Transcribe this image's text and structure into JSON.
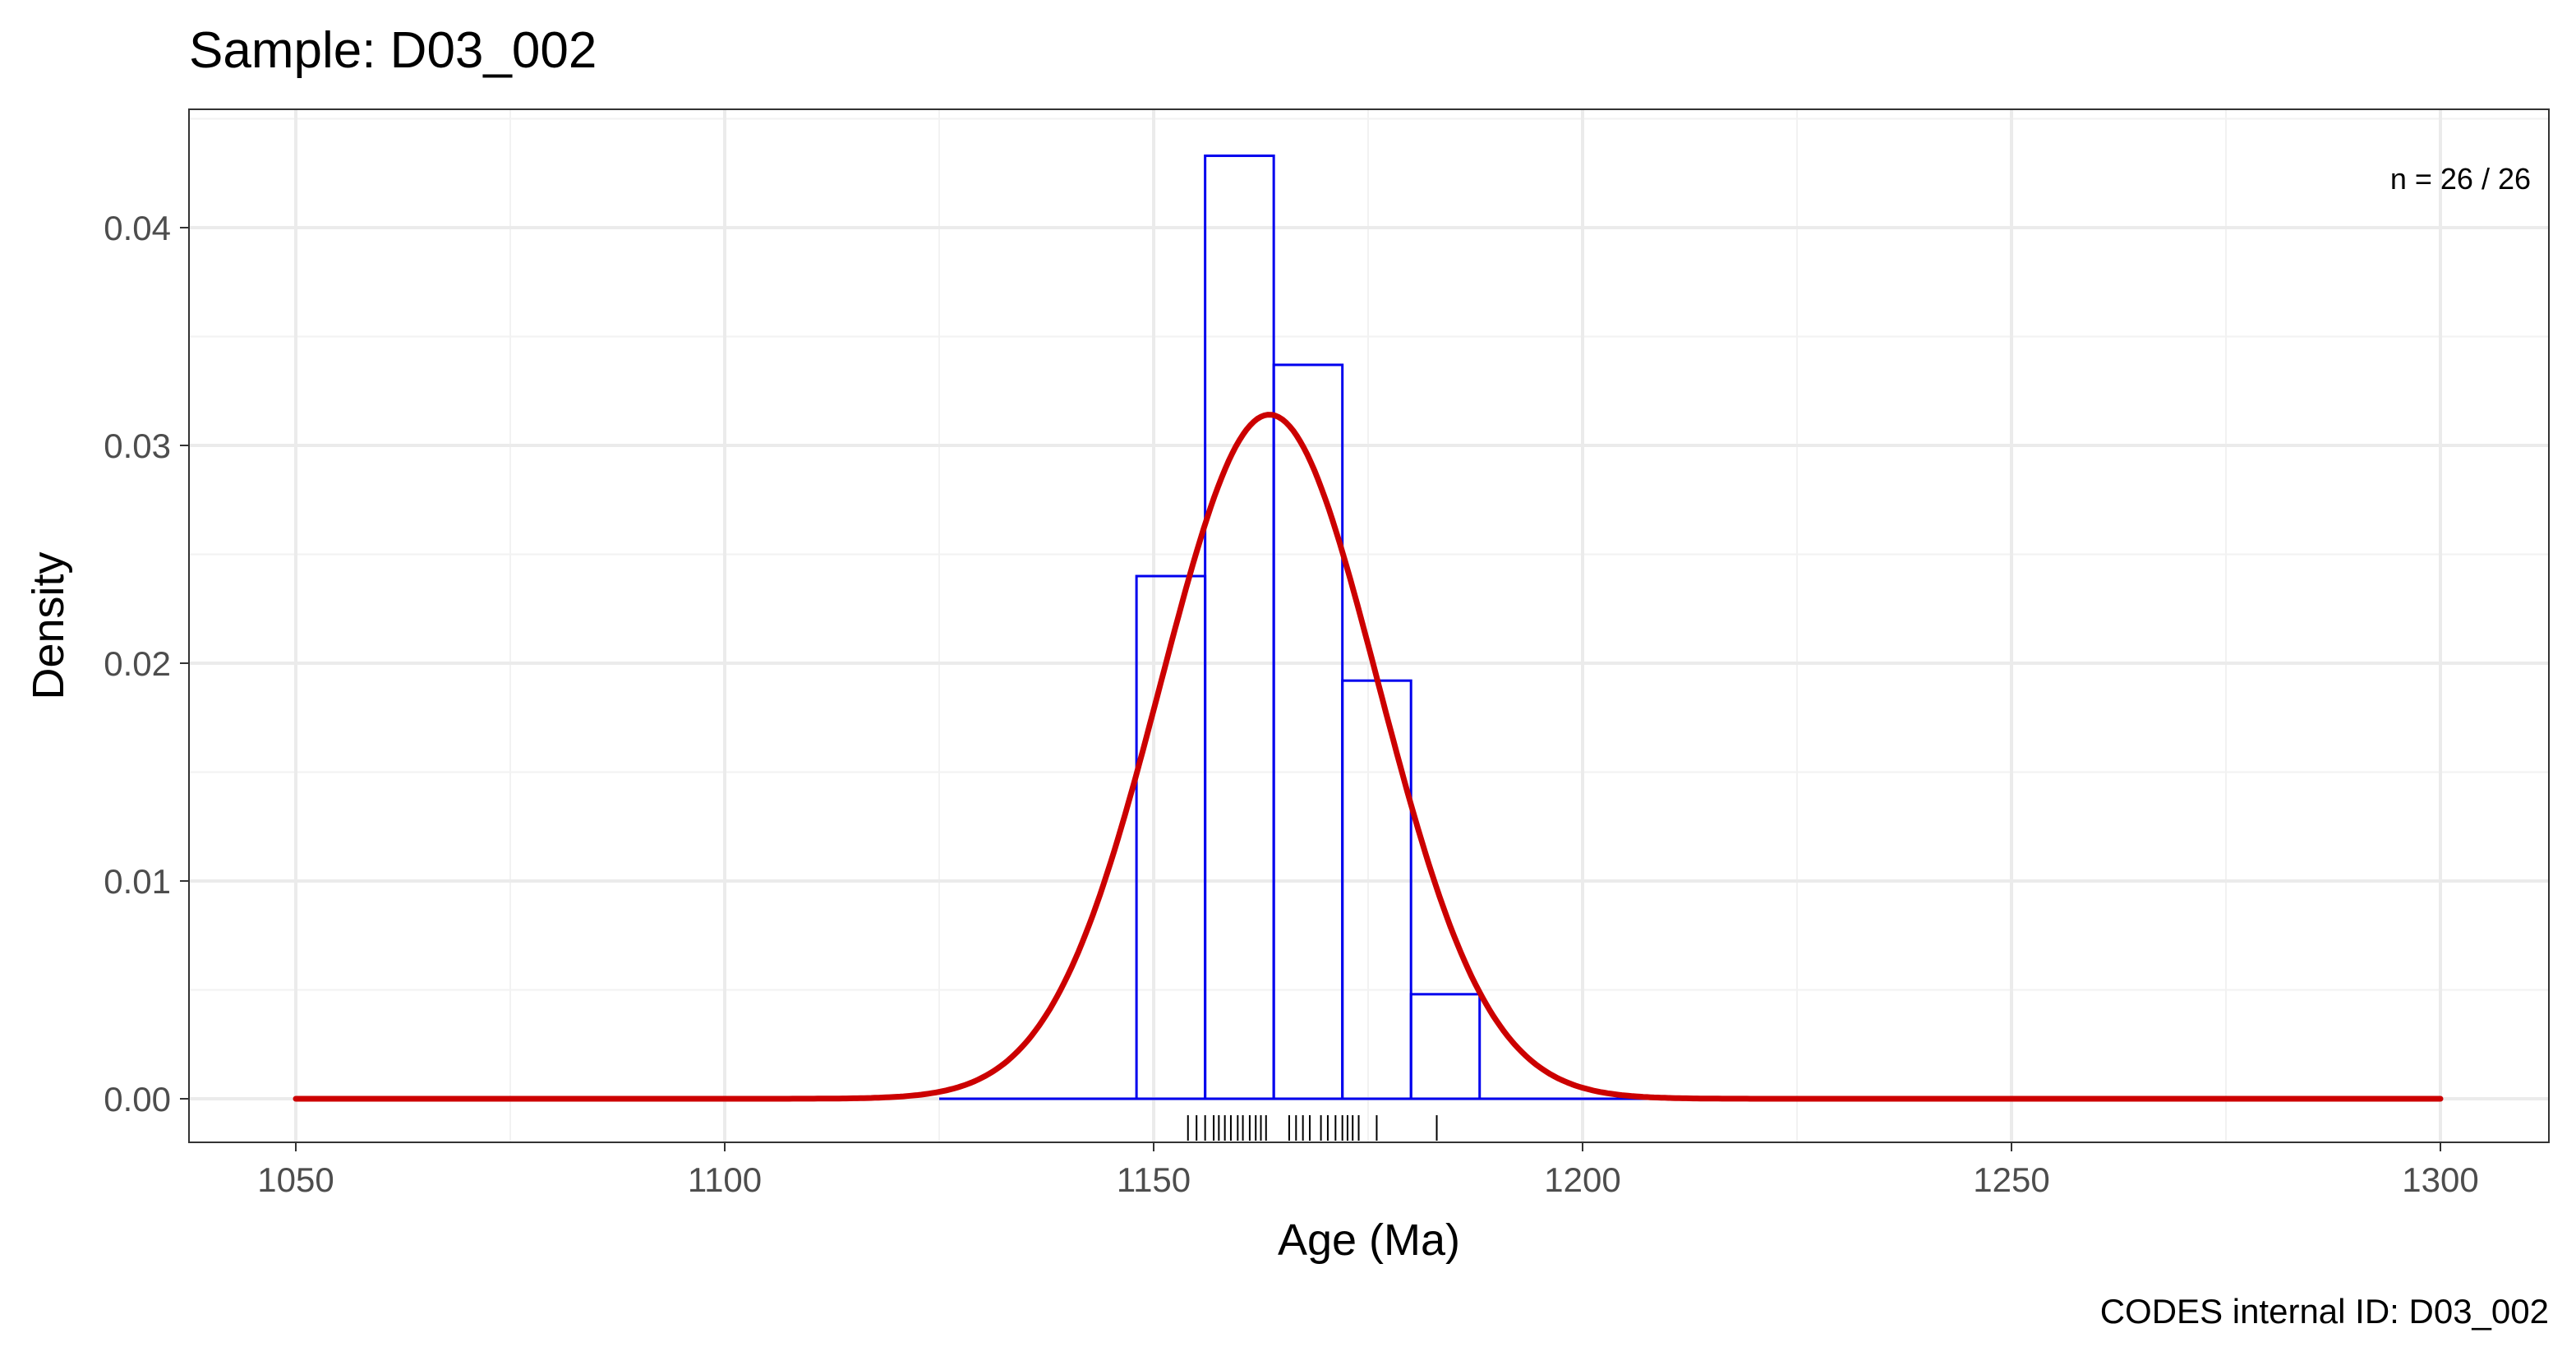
{
  "chart_data": {
    "type": "bar",
    "title": "Sample: D03_002",
    "xlabel": "Age (Ma)",
    "ylabel": "Density",
    "caption": "CODES internal ID: D03_002",
    "annotation": "n = 26 / 26",
    "xlim": [
      1050,
      1300
    ],
    "ylim": [
      0,
      0.045
    ],
    "x_ticks": [
      1050,
      1100,
      1150,
      1200,
      1250,
      1300
    ],
    "x_tick_labels": [
      "1050",
      "1100",
      "1150",
      "1200",
      "1250",
      "1300"
    ],
    "y_ticks": [
      0,
      0.01,
      0.02,
      0.03,
      0.04
    ],
    "y_tick_labels": [
      "0.00",
      "0.01",
      "0.02",
      "0.03",
      "0.04"
    ],
    "grid": true,
    "histogram": {
      "bins": [
        {
          "start": 1148,
          "end": 1156,
          "density": 0.024
        },
        {
          "start": 1156,
          "end": 1164,
          "density": 0.0433
        },
        {
          "start": 1164,
          "end": 1172,
          "density": 0.0337
        },
        {
          "start": 1172,
          "end": 1180,
          "density": 0.0192
        },
        {
          "start": 1180,
          "end": 1188,
          "density": 0.0048
        }
      ],
      "baseline_range": [
        1125,
        1210
      ],
      "color": "#0000ee"
    },
    "density_curve": {
      "type": "normal",
      "mean": 1163.5,
      "sd": 12.7,
      "x_range": [
        1050,
        1300
      ],
      "color": "#cc0000"
    },
    "rug": [
      1154,
      1155,
      1156,
      1157,
      1157.6,
      1158.3,
      1159,
      1159.8,
      1160.4,
      1161.2,
      1161.9,
      1162.5,
      1163.1,
      1165.8,
      1166.6,
      1167.4,
      1168.2,
      1169.5,
      1170.3,
      1171.2,
      1172,
      1172.6,
      1173.2,
      1173.9,
      1176,
      1183
    ]
  }
}
